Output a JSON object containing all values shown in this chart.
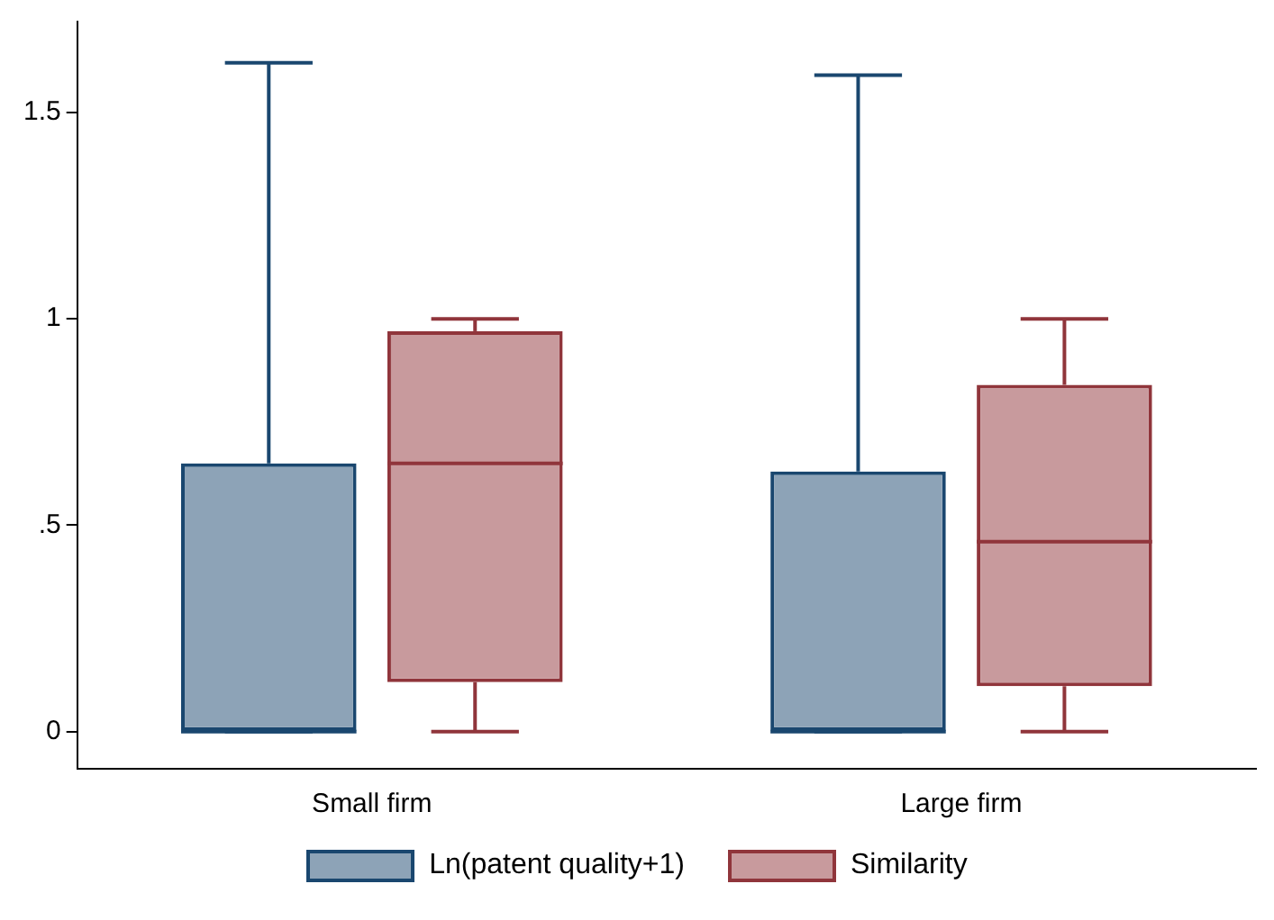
{
  "chart_data": {
    "type": "box",
    "categories": [
      "Small firm",
      "Large firm"
    ],
    "series": [
      {
        "name": "Ln(patent quality+1)",
        "color": "#1a476f",
        "boxes": [
          {
            "low": 0,
            "q1": 0,
            "median": 0,
            "q3": 0.65,
            "high": 1.62
          },
          {
            "low": 0,
            "q1": 0,
            "median": 0,
            "q3": 0.63,
            "high": 1.59
          }
        ]
      },
      {
        "name": "Similarity",
        "color": "#90353b",
        "boxes": [
          {
            "low": 0,
            "q1": 0.12,
            "median": 0.65,
            "q3": 0.97,
            "high": 1.0
          },
          {
            "low": 0,
            "q1": 0.11,
            "median": 0.46,
            "q3": 0.84,
            "high": 1.0
          }
        ]
      }
    ],
    "ylim": [
      -0.09,
      1.72
    ],
    "yticks": [
      0,
      {
        "value": 0.5,
        "label": ".5"
      },
      1,
      1.5
    ],
    "grid": false,
    "legend": "bottom"
  }
}
